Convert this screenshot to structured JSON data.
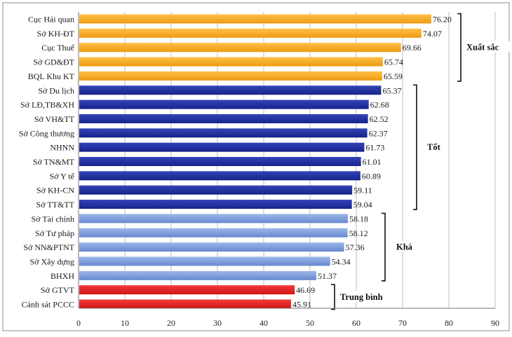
{
  "chart_data": {
    "type": "bar",
    "orientation": "horizontal",
    "categories": [
      "Cục Hải quan",
      "Sở KH-ĐT",
      "Cục Thuế",
      "Sở GD&ĐT",
      "BQL Khu KT",
      "Sở Du lịch",
      "Sở LĐ,TB&XH",
      "Sở VH&TT",
      "Sở Công thương",
      "NHNN",
      "Sở TN&MT",
      "Sở Y tế",
      "Sở KH-CN",
      "Sở TT&TT",
      "Sở Tài chính",
      "Sở Tư pháp",
      "Sở NN&PTNT",
      "Sở Xây dựng",
      "BHXH",
      "Sở GTVT",
      "Cảnh sát PCCC"
    ],
    "values": [
      76.2,
      74.07,
      69.66,
      65.74,
      65.59,
      65.37,
      62.68,
      62.52,
      62.37,
      61.73,
      61.01,
      60.89,
      59.11,
      59.04,
      58.18,
      58.12,
      57.36,
      54.34,
      51.37,
      46.69,
      45.91
    ],
    "value_labels": [
      "76.20",
      "74.07",
      "69.66",
      "65.74",
      "65.59",
      "65.37",
      "62.68",
      "62.52",
      "62.37",
      "61.73",
      "61.01",
      "60.89",
      "59.11",
      "59.04",
      "58.18",
      "58.12",
      "57.36",
      "54.34",
      "51.37",
      "46.69",
      "45.91"
    ],
    "groups": [
      {
        "label": "Xuất sắc",
        "start": 0,
        "end": 4,
        "color": "#F5A623"
      },
      {
        "label": "Tốt",
        "start": 5,
        "end": 13,
        "color": "#1E2F9B"
      },
      {
        "label": "Khá",
        "start": 14,
        "end": 18,
        "color": "#7A9CDA"
      },
      {
        "label": "Trung bình",
        "start": 19,
        "end": 20,
        "color": "#E41F1F"
      }
    ],
    "xlim": [
      0,
      90
    ],
    "xticks": [
      "0",
      "10",
      "20",
      "30",
      "40",
      "50",
      "60",
      "70",
      "80",
      "90"
    ],
    "grid": true,
    "title": "",
    "xlabel": "",
    "ylabel": ""
  }
}
